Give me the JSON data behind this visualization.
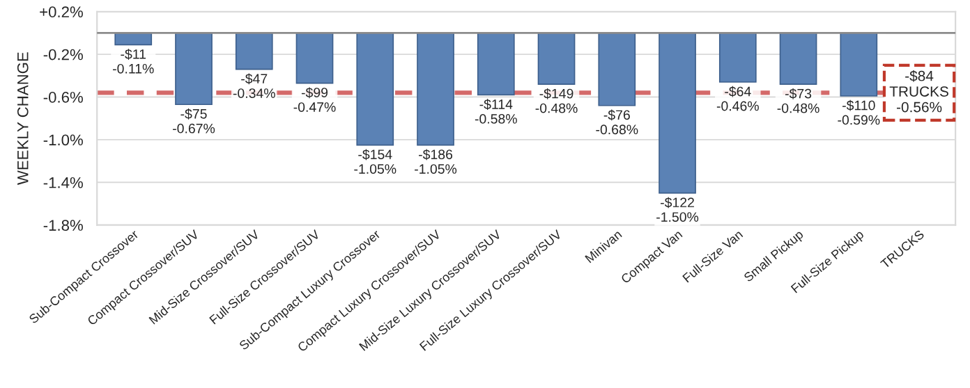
{
  "chart_data": {
    "type": "bar",
    "categories": [
      "Sub-Compact Crossover",
      "Compact Crossover/SUV",
      "Mid-Size Crossover/SUV",
      "Full-Size Crossover/SUV",
      "Sub-Compact Luxury Crossover",
      "Compact Luxury Crossover/SUV",
      "Mid-Size Luxury Crossover/SUV",
      "Full-Size Luxury Crossover/SUV",
      "Minivan",
      "Compact Van",
      "Full-Size Van",
      "Small Pickup",
      "Full-Size Pickup",
      "TRUCKS"
    ],
    "values": [
      -0.11,
      -0.67,
      -0.34,
      -0.47,
      -1.05,
      -1.05,
      -0.58,
      -0.48,
      -0.68,
      -1.5,
      -0.46,
      -0.48,
      -0.59,
      null
    ],
    "value_labels": [
      "-$11\n-0.11%",
      "-$75\n-0.67%",
      "-$47\n-0.34%",
      "-$99\n-0.47%",
      "-$154\n-1.05%",
      "-$186\n-1.05%",
      "-$114\n-0.58%",
      "-$149\n-0.48%",
      "-$76\n-0.68%",
      "-$122\n-1.50%",
      "-$64\n-0.46%",
      "-$73\n-0.48%",
      "-$110\n-0.59%",
      null
    ],
    "color": "#5b82b5",
    "ylabel": "WEEKLY CHANGE",
    "ylim": [
      -1.8,
      0.2
    ],
    "yticks": [
      {
        "value": 0.2,
        "label": "+0.2%"
      },
      {
        "value": -0.2,
        "label": "-0.2%"
      },
      {
        "value": -0.6,
        "label": "-0.6%"
      },
      {
        "value": -1.0,
        "label": "-1.0%"
      },
      {
        "value": -1.4,
        "label": "-1.4%"
      },
      {
        "value": -1.8,
        "label": "-1.8%"
      }
    ],
    "grid": "y",
    "ref_lines": [
      {
        "axis": "y",
        "value": -0.56,
        "label": "-$84\nTRUCKS\n-0.56%",
        "color": "#d46a6a",
        "line_style": "dashed"
      }
    ]
  }
}
